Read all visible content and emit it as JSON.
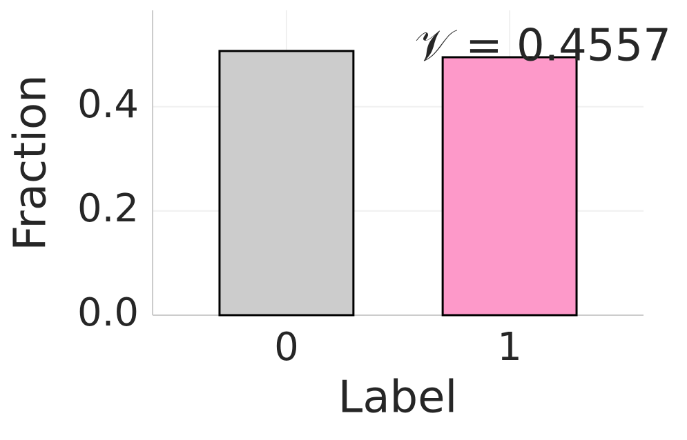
{
  "chart_data": {
    "type": "bar",
    "xlabel": "Label",
    "ylabel": "Fraction",
    "annotation": "𝒱 = 0.4557",
    "categories": [
      "0",
      "1"
    ],
    "values": [
      0.507,
      0.495
    ],
    "colors": [
      "#cccccc",
      "#fd99c9"
    ],
    "ylim": [
      0,
      0.585
    ],
    "yticks": [
      {
        "value": 0,
        "label": "0.0"
      },
      0.2,
      0.4
    ],
    "grid": true
  }
}
